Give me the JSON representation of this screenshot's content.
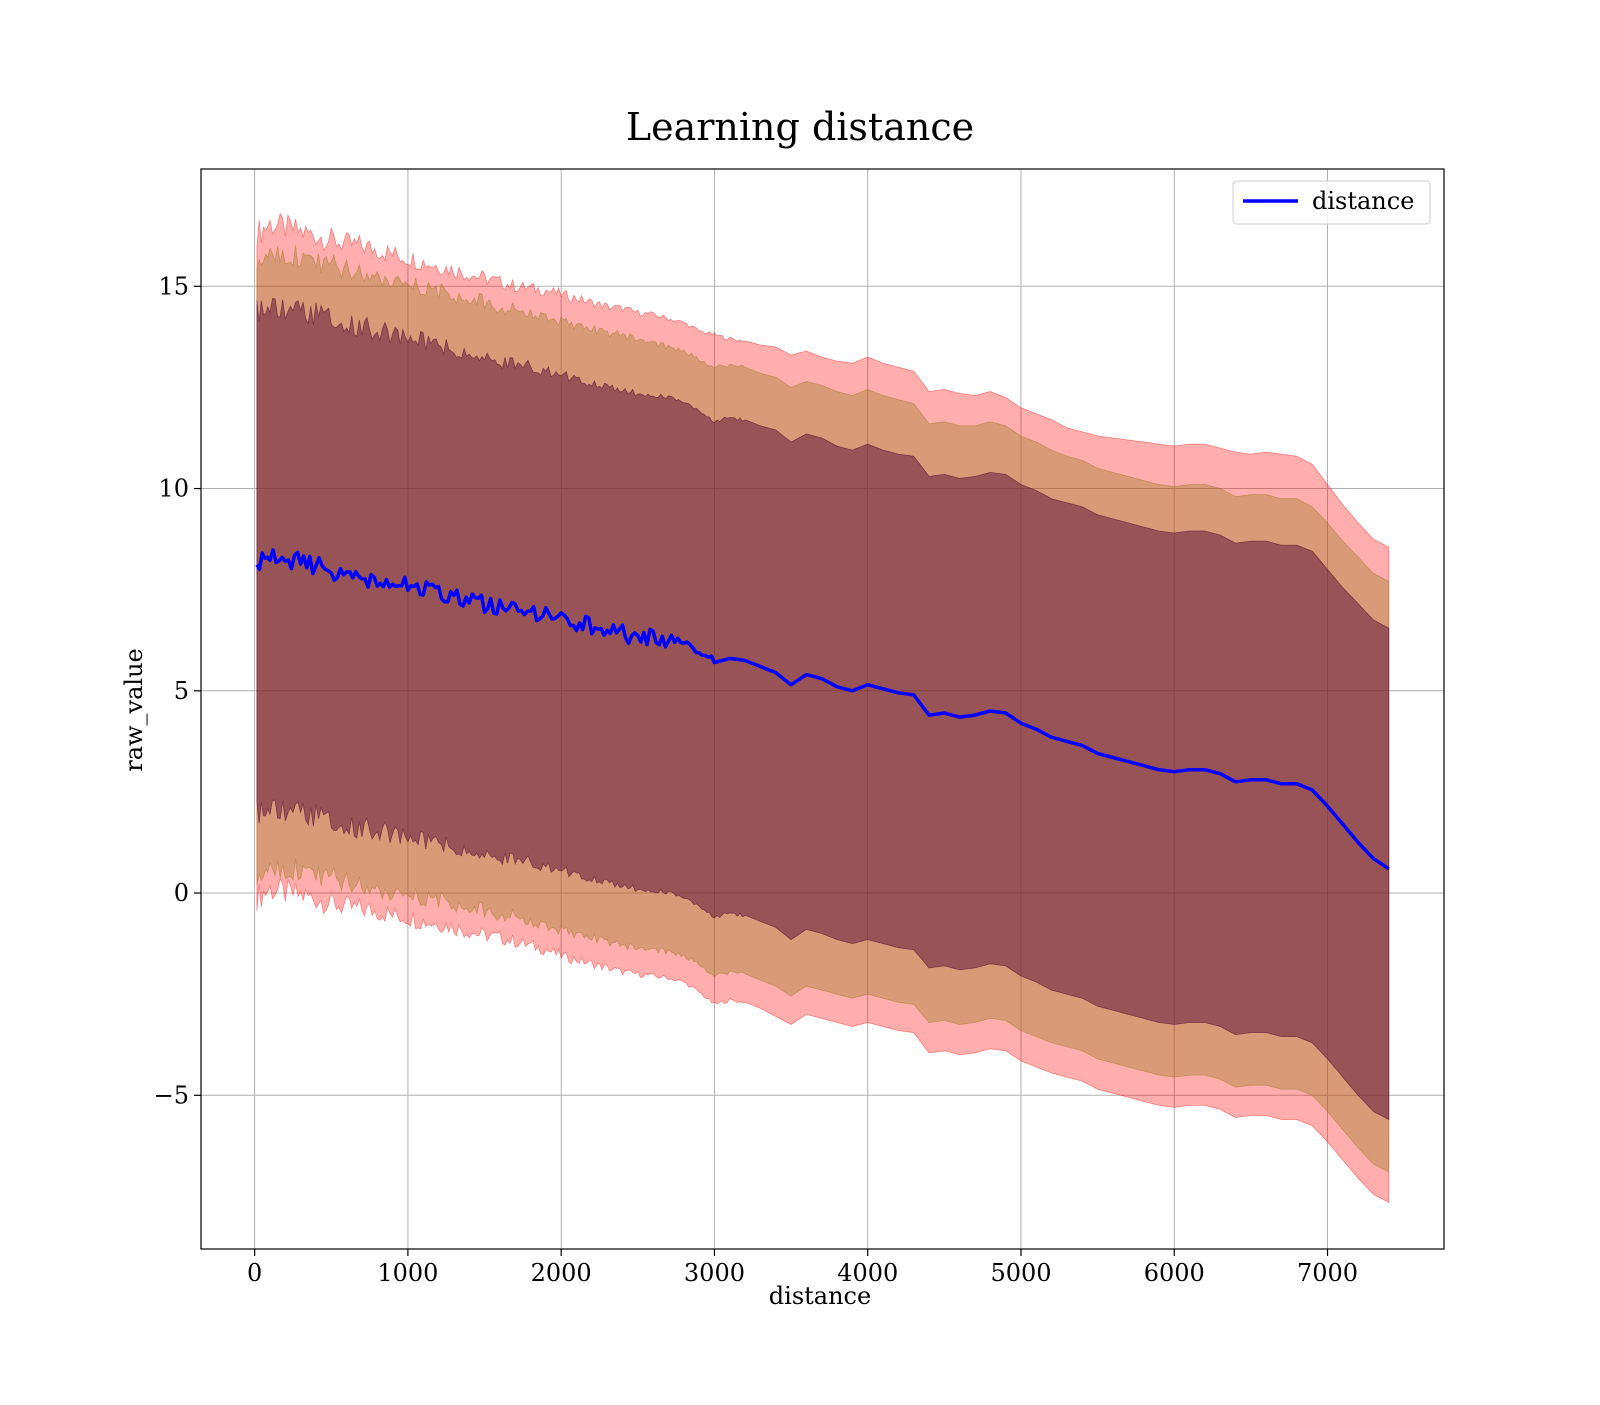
{
  "chart_data": {
    "type": "line",
    "title": "Learning distance",
    "xlabel": "distance",
    "ylabel": "raw_value",
    "xlim": [
      -350,
      7760
    ],
    "ylim": [
      -8.8,
      17.9
    ],
    "xticks": [
      0,
      1000,
      2000,
      3000,
      4000,
      5000,
      6000,
      7000
    ],
    "yticks": [
      -5,
      0,
      5,
      10,
      15
    ],
    "ytick_labels": [
      "−5",
      "0",
      "5",
      "10",
      "15"
    ],
    "grid": true,
    "legend": {
      "position": "top-right",
      "entries": [
        "distance"
      ]
    },
    "x": [
      15,
      100,
      200,
      300,
      400,
      500,
      600,
      700,
      800,
      900,
      1000,
      1100,
      1200,
      1300,
      1400,
      1500,
      1600,
      1700,
      1800,
      1900,
      2000,
      2100,
      2200,
      2300,
      2400,
      2500,
      2600,
      2700,
      2800,
      2900,
      3000,
      3100,
      3200,
      3300,
      3400,
      3500,
      3600,
      3700,
      3800,
      3900,
      4000,
      4100,
      4200,
      4300,
      4400,
      4500,
      4600,
      4700,
      4800,
      4900,
      5000,
      5100,
      5200,
      5300,
      5400,
      5500,
      5600,
      5700,
      5800,
      5900,
      6000,
      6100,
      6200,
      6300,
      6400,
      6500,
      6600,
      6700,
      6800,
      6900,
      7000,
      7100,
      7200,
      7300,
      7400
    ],
    "series": [
      {
        "name": "distance",
        "color": "#0000ff",
        "values": [
          8.1,
          8.35,
          8.25,
          8.2,
          8.1,
          7.95,
          7.85,
          7.8,
          7.75,
          7.65,
          7.6,
          7.5,
          7.45,
          7.35,
          7.25,
          7.15,
          7.1,
          7.0,
          6.95,
          6.85,
          6.8,
          6.7,
          6.6,
          6.5,
          6.4,
          6.35,
          6.3,
          6.25,
          6.2,
          6.0,
          5.7,
          5.8,
          5.75,
          5.6,
          5.45,
          5.15,
          5.4,
          5.3,
          5.1,
          5.0,
          5.15,
          5.05,
          4.95,
          4.9,
          4.4,
          4.45,
          4.35,
          4.4,
          4.5,
          4.45,
          4.2,
          4.05,
          3.85,
          3.75,
          3.65,
          3.45,
          3.35,
          3.25,
          3.15,
          3.05,
          3.0,
          3.05,
          3.05,
          2.95,
          2.75,
          2.8,
          2.8,
          2.7,
          2.7,
          2.55,
          2.15,
          1.7,
          1.25,
          0.85,
          0.6
        ]
      }
    ],
    "bands": [
      {
        "color": "#ff0000",
        "opacity": 0.32,
        "upper": [
          16.3,
          16.55,
          16.45,
          16.35,
          16.25,
          16.15,
          16.05,
          16.0,
          15.9,
          15.8,
          15.7,
          15.6,
          15.5,
          15.4,
          15.3,
          15.2,
          15.1,
          15.0,
          14.95,
          14.9,
          14.8,
          14.7,
          14.6,
          14.5,
          14.45,
          14.35,
          14.3,
          14.2,
          14.1,
          13.9,
          13.8,
          13.7,
          13.65,
          13.55,
          13.5,
          13.3,
          13.4,
          13.25,
          13.15,
          13.1,
          13.25,
          13.1,
          13.0,
          12.9,
          12.4,
          12.45,
          12.35,
          12.3,
          12.4,
          12.25,
          12.0,
          11.85,
          11.7,
          11.5,
          11.4,
          11.3,
          11.25,
          11.2,
          11.15,
          11.1,
          11.05,
          11.1,
          11.1,
          11.0,
          10.9,
          10.85,
          10.9,
          10.85,
          10.8,
          10.6,
          10.1,
          9.6,
          9.15,
          8.75,
          8.55
        ],
        "lower": [
          -0.1,
          0.1,
          0.0,
          -0.05,
          -0.15,
          -0.25,
          -0.35,
          -0.4,
          -0.45,
          -0.55,
          -0.6,
          -0.7,
          -0.75,
          -0.85,
          -0.95,
          -1.05,
          -1.1,
          -1.2,
          -1.3,
          -1.4,
          -1.55,
          -1.65,
          -1.75,
          -1.85,
          -1.95,
          -2.0,
          -2.05,
          -2.1,
          -2.2,
          -2.45,
          -2.75,
          -2.65,
          -2.7,
          -2.85,
          -3.05,
          -3.25,
          -3.0,
          -3.1,
          -3.2,
          -3.3,
          -3.2,
          -3.3,
          -3.4,
          -3.45,
          -3.95,
          -3.9,
          -4.0,
          -3.95,
          -3.85,
          -3.9,
          -4.15,
          -4.3,
          -4.45,
          -4.55,
          -4.65,
          -4.85,
          -4.95,
          -5.05,
          -5.15,
          -5.25,
          -5.3,
          -5.25,
          -5.25,
          -5.35,
          -5.55,
          -5.5,
          -5.5,
          -5.6,
          -5.6,
          -5.75,
          -6.15,
          -6.6,
          -7.05,
          -7.45,
          -7.65
        ]
      },
      {
        "color": "#9b7b20",
        "opacity": 0.38,
        "upper": [
          15.7,
          15.95,
          15.85,
          15.75,
          15.65,
          15.55,
          15.45,
          15.4,
          15.3,
          15.2,
          15.1,
          15.0,
          14.9,
          14.8,
          14.7,
          14.6,
          14.5,
          14.4,
          14.35,
          14.25,
          14.15,
          14.05,
          13.95,
          13.85,
          13.8,
          13.7,
          13.6,
          13.5,
          13.4,
          13.2,
          13.0,
          13.05,
          13.0,
          12.85,
          12.75,
          12.5,
          12.65,
          12.55,
          12.4,
          12.3,
          12.45,
          12.3,
          12.2,
          12.1,
          11.6,
          11.65,
          11.55,
          11.55,
          11.65,
          11.55,
          11.3,
          11.15,
          10.95,
          10.8,
          10.7,
          10.5,
          10.4,
          10.3,
          10.2,
          10.1,
          10.05,
          10.1,
          10.1,
          10.0,
          9.8,
          9.85,
          9.85,
          9.75,
          9.75,
          9.55,
          9.15,
          8.7,
          8.3,
          7.9,
          7.7
        ],
        "lower": [
          0.5,
          0.75,
          0.65,
          0.6,
          0.5,
          0.4,
          0.3,
          0.25,
          0.15,
          0.05,
          0.0,
          -0.1,
          -0.15,
          -0.25,
          -0.35,
          -0.45,
          -0.5,
          -0.6,
          -0.7,
          -0.8,
          -0.9,
          -1.0,
          -1.1,
          -1.2,
          -1.3,
          -1.35,
          -1.4,
          -1.45,
          -1.55,
          -1.75,
          -2.05,
          -1.95,
          -2.0,
          -2.15,
          -2.3,
          -2.55,
          -2.3,
          -2.4,
          -2.5,
          -2.6,
          -2.5,
          -2.6,
          -2.7,
          -2.75,
          -3.2,
          -3.15,
          -3.25,
          -3.2,
          -3.1,
          -3.15,
          -3.4,
          -3.55,
          -3.7,
          -3.8,
          -3.9,
          -4.1,
          -4.2,
          -4.3,
          -4.4,
          -4.5,
          -4.55,
          -4.5,
          -4.5,
          -4.6,
          -4.8,
          -4.75,
          -4.75,
          -4.85,
          -4.85,
          -5.0,
          -5.4,
          -5.85,
          -6.3,
          -6.7,
          -6.9
        ]
      },
      {
        "color": "#5c1438",
        "opacity": 0.52,
        "upper": [
          14.3,
          14.55,
          14.45,
          14.4,
          14.3,
          14.2,
          14.05,
          14.0,
          13.9,
          13.8,
          13.75,
          13.65,
          13.55,
          13.45,
          13.35,
          13.25,
          13.15,
          13.05,
          13.0,
          12.9,
          12.8,
          12.7,
          12.6,
          12.5,
          12.4,
          12.35,
          12.3,
          12.25,
          12.15,
          11.95,
          11.65,
          11.75,
          11.7,
          11.55,
          11.45,
          11.15,
          11.35,
          11.25,
          11.05,
          10.95,
          11.1,
          10.95,
          10.85,
          10.8,
          10.3,
          10.35,
          10.25,
          10.3,
          10.4,
          10.35,
          10.1,
          9.95,
          9.75,
          9.65,
          9.55,
          9.35,
          9.25,
          9.15,
          9.05,
          8.95,
          8.9,
          8.95,
          8.95,
          8.85,
          8.65,
          8.7,
          8.7,
          8.6,
          8.6,
          8.45,
          8.0,
          7.55,
          7.15,
          6.75,
          6.55
        ],
        "lower": [
          1.9,
          2.15,
          2.05,
          2.0,
          1.9,
          1.75,
          1.65,
          1.6,
          1.55,
          1.45,
          1.4,
          1.3,
          1.25,
          1.15,
          1.05,
          0.95,
          0.9,
          0.8,
          0.75,
          0.65,
          0.55,
          0.45,
          0.35,
          0.25,
          0.15,
          0.1,
          0.05,
          0.0,
          -0.1,
          -0.3,
          -0.6,
          -0.5,
          -0.55,
          -0.7,
          -0.85,
          -1.15,
          -0.9,
          -1.0,
          -1.15,
          -1.25,
          -1.15,
          -1.25,
          -1.35,
          -1.4,
          -1.85,
          -1.8,
          -1.9,
          -1.85,
          -1.75,
          -1.8,
          -2.05,
          -2.2,
          -2.4,
          -2.5,
          -2.6,
          -2.8,
          -2.9,
          -3.0,
          -3.1,
          -3.2,
          -3.25,
          -3.2,
          -3.2,
          -3.3,
          -3.5,
          -3.45,
          -3.45,
          -3.55,
          -3.55,
          -3.7,
          -4.1,
          -4.55,
          -5.0,
          -5.4,
          -5.6
        ]
      }
    ]
  }
}
